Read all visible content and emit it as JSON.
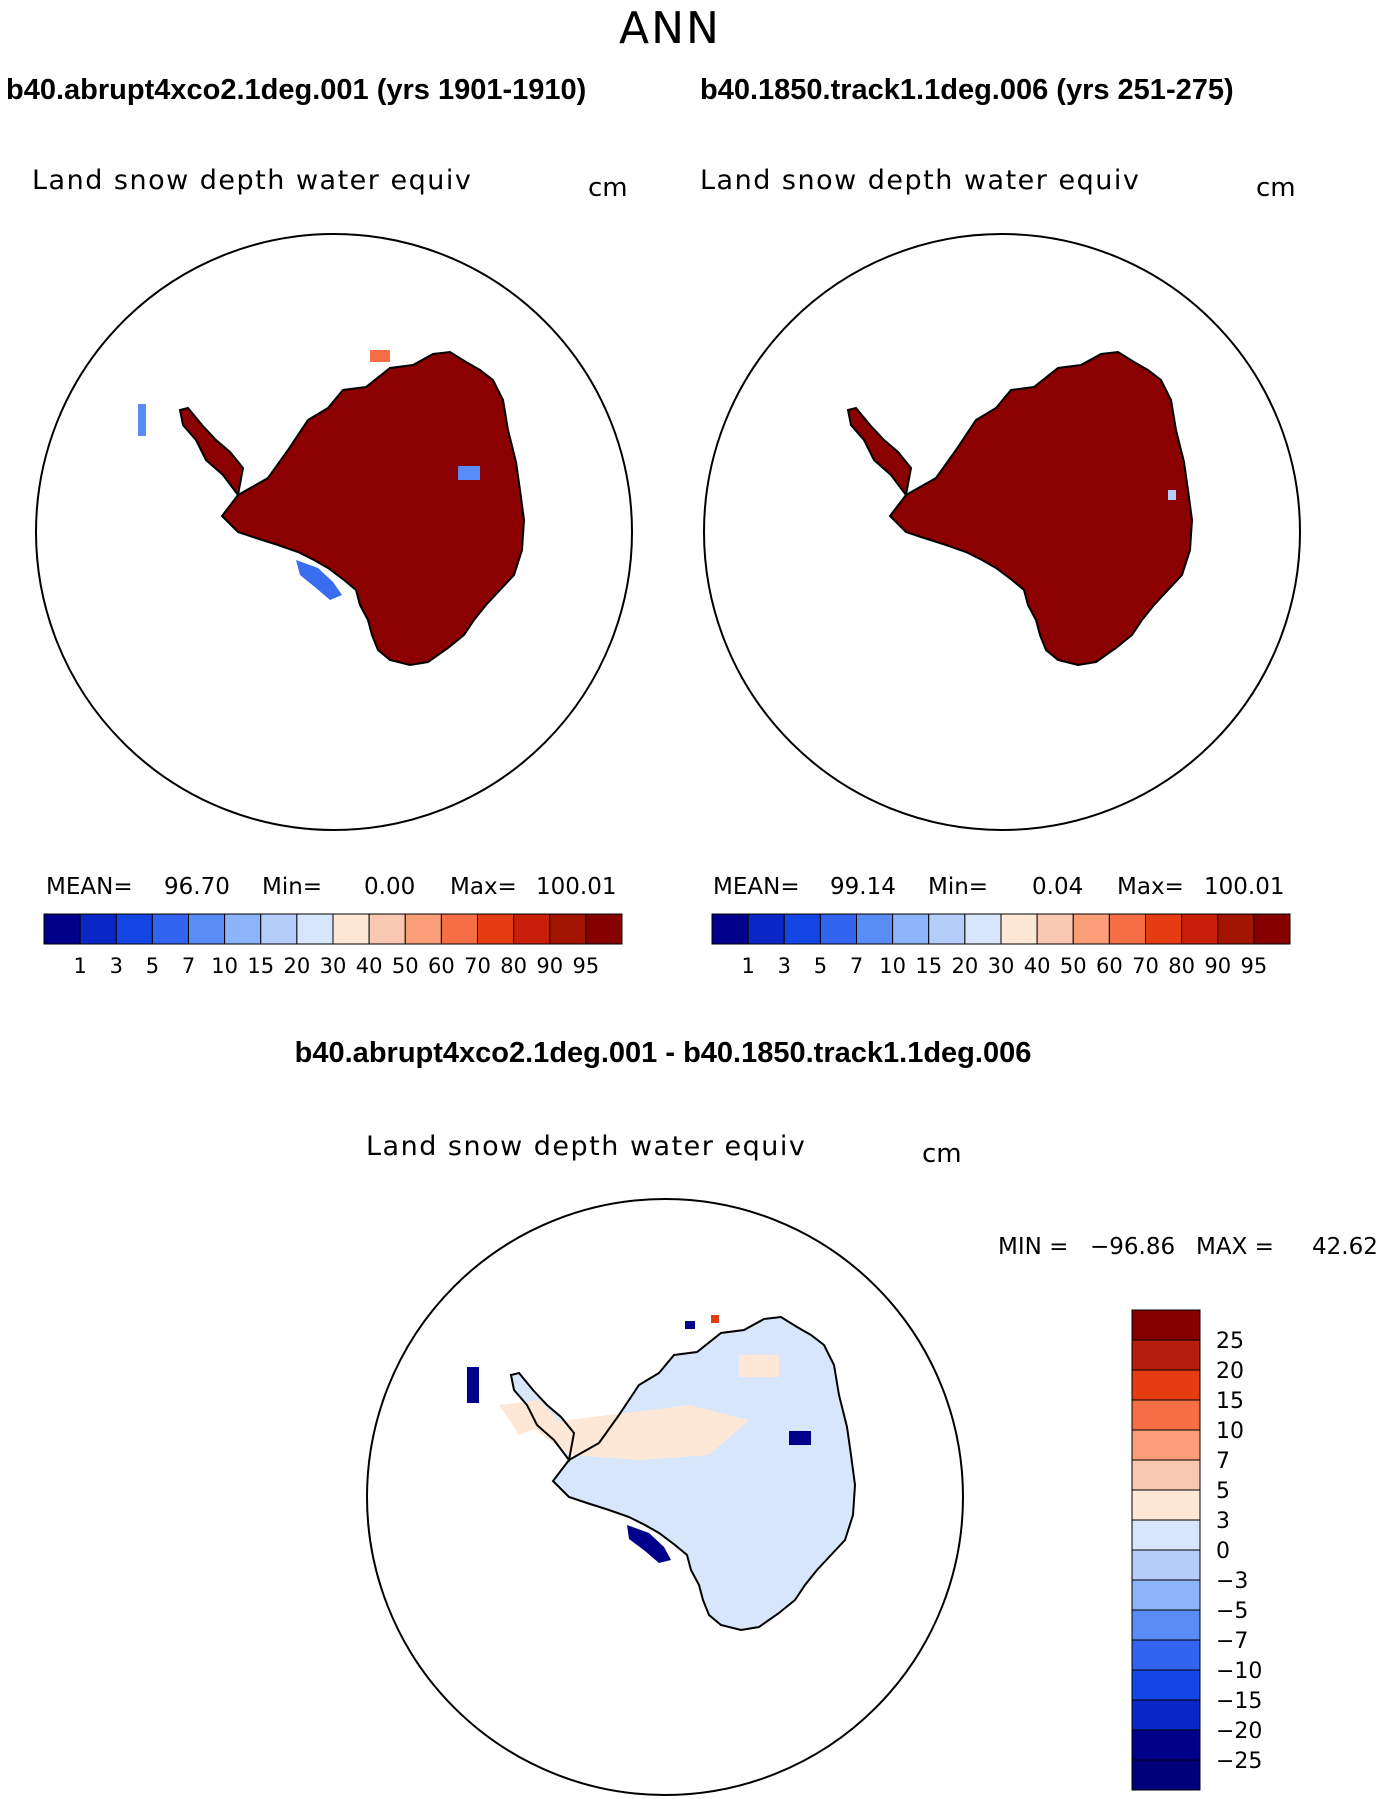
{
  "page_title": "ANN",
  "panel_top_left": {
    "title": "b40.abrupt4xco2.1deg.001 (yrs 1901-1910)",
    "variable": "Land snow depth water equiv",
    "units": "cm",
    "stats": {
      "mean_label": "MEAN=",
      "mean": "96.70",
      "min_label": "Min=",
      "min": "0.00",
      "max_label": "Max=",
      "max": "100.01"
    }
  },
  "panel_top_right": {
    "title": "b40.1850.track1.1deg.006 (yrs 251-275)",
    "variable": "Land snow depth water equiv",
    "units": "cm",
    "stats": {
      "mean_label": "MEAN=",
      "mean": "99.14",
      "min_label": "Min=",
      "min": "0.04",
      "max_label": "Max=",
      "max": "100.01"
    }
  },
  "panel_diff": {
    "title": "b40.abrupt4xco2.1deg.001 - b40.1850.track1.1deg.006",
    "variable": "Land snow depth water equiv",
    "units": "cm",
    "stats": {
      "min_label": "MIN =",
      "min": "−96.86",
      "max_label": "MAX =",
      "max": "42.62"
    }
  },
  "colorbar_abs": {
    "colors": [
      "#00008b",
      "#0a28c8",
      "#1446e6",
      "#3264f0",
      "#5a8cf5",
      "#8cb4fa",
      "#b4cdfa",
      "#d7e6fa",
      "#fde8d8",
      "#fac8b0",
      "#fa9e78",
      "#f56e46",
      "#e63c14",
      "#c81e0a",
      "#a01400",
      "#870000"
    ],
    "ticks": [
      "1",
      "3",
      "5",
      "7",
      "10",
      "15",
      "20",
      "30",
      "40",
      "50",
      "60",
      "70",
      "80",
      "90",
      "95"
    ]
  },
  "colorbar_diff": {
    "colors": [
      "#870000",
      "#b41e0a",
      "#e63c14",
      "#f56e46",
      "#fa9e78",
      "#fac8b0",
      "#fde8d8",
      "#d7e6fa",
      "#b4cdfa",
      "#8cb4fa",
      "#5a8cf5",
      "#3264f0",
      "#1446e6",
      "#0a28c8",
      "#00008b",
      "#00007a"
    ],
    "ticks": [
      "25",
      "20",
      "15",
      "10",
      "7",
      "5",
      "3",
      "0",
      "−3",
      "−5",
      "−7",
      "−10",
      "−15",
      "−20",
      "−25"
    ]
  }
}
